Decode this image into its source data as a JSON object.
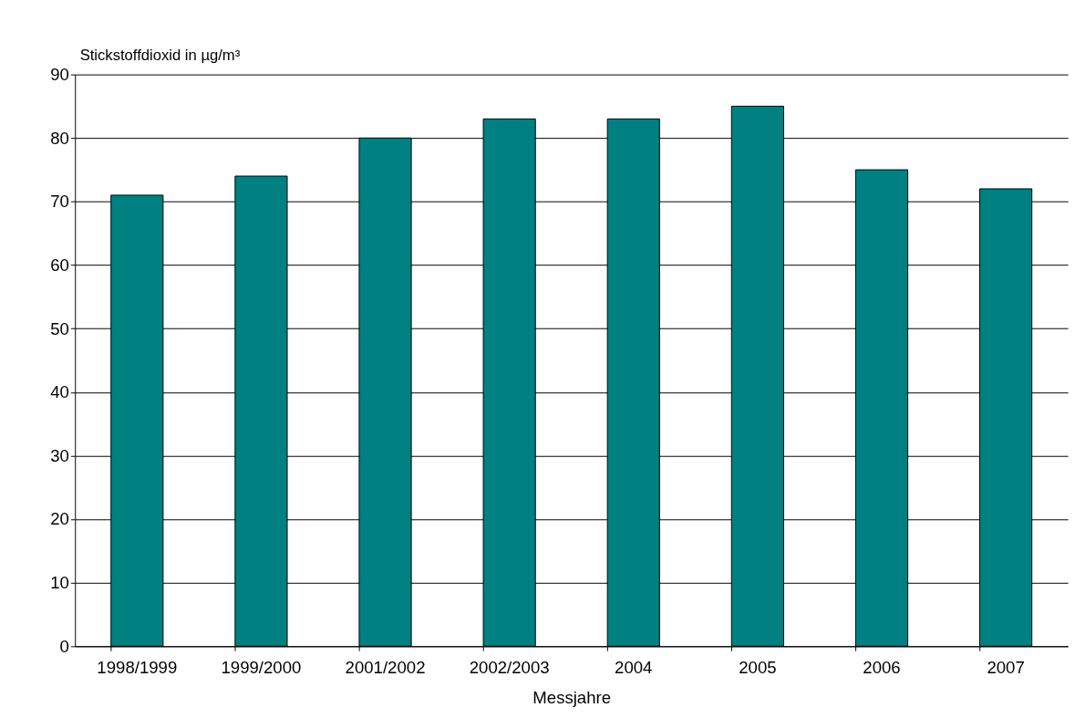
{
  "chart_data": {
    "type": "bar",
    "categories": [
      "1998/1999",
      "1999/2000",
      "2001/2002",
      "2002/2003",
      "2004",
      "2005",
      "2006",
      "2007"
    ],
    "values": [
      71,
      74,
      80,
      83,
      83,
      85,
      75,
      72
    ],
    "color": "#008080",
    "ylabel": "Stickstoffdioxid in µg/m³",
    "xlabel": "Messjahre",
    "ylim": [
      0,
      90
    ],
    "yticks": [
      0,
      10,
      20,
      30,
      40,
      50,
      60,
      70,
      80,
      90
    ],
    "grid": "y"
  }
}
